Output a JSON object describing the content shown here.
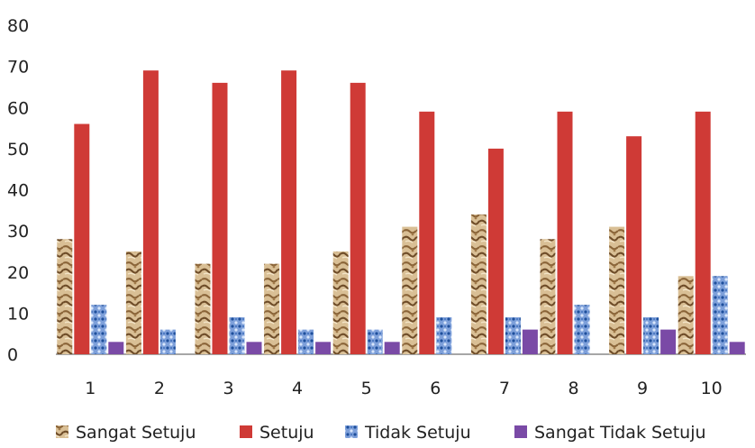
{
  "chart_data": {
    "type": "bar",
    "title": "",
    "xlabel": "",
    "ylabel": "",
    "categories": [
      "1",
      "2",
      "3",
      "4",
      "5",
      "6",
      "7",
      "8",
      "9",
      "10"
    ],
    "ylim": [
      0,
      80
    ],
    "yticks": [
      0,
      10,
      20,
      30,
      40,
      50,
      60,
      70,
      80
    ],
    "grid": false,
    "legend_position": "bottom",
    "series": [
      {
        "name": "Sangat Setuju",
        "color": "#c9a97c",
        "pattern": "sand",
        "values": [
          28,
          25,
          22,
          22,
          25,
          31,
          34,
          28,
          31,
          19
        ]
      },
      {
        "name": "Setuju",
        "color": "#cf3a36",
        "pattern": "solid",
        "values": [
          56,
          69,
          66,
          69,
          66,
          59,
          50,
          59,
          53,
          59
        ]
      },
      {
        "name": "Tidak Setuju",
        "color": "#6f95d4",
        "pattern": "dots",
        "values": [
          12,
          6,
          9,
          6,
          6,
          9,
          9,
          12,
          9,
          19
        ]
      },
      {
        "name": "Sangat Tidak Setuju",
        "color": "#7a4aa6",
        "pattern": "solid",
        "values": [
          3,
          0,
          3,
          3,
          3,
          0,
          6,
          0,
          6,
          3
        ]
      }
    ]
  }
}
